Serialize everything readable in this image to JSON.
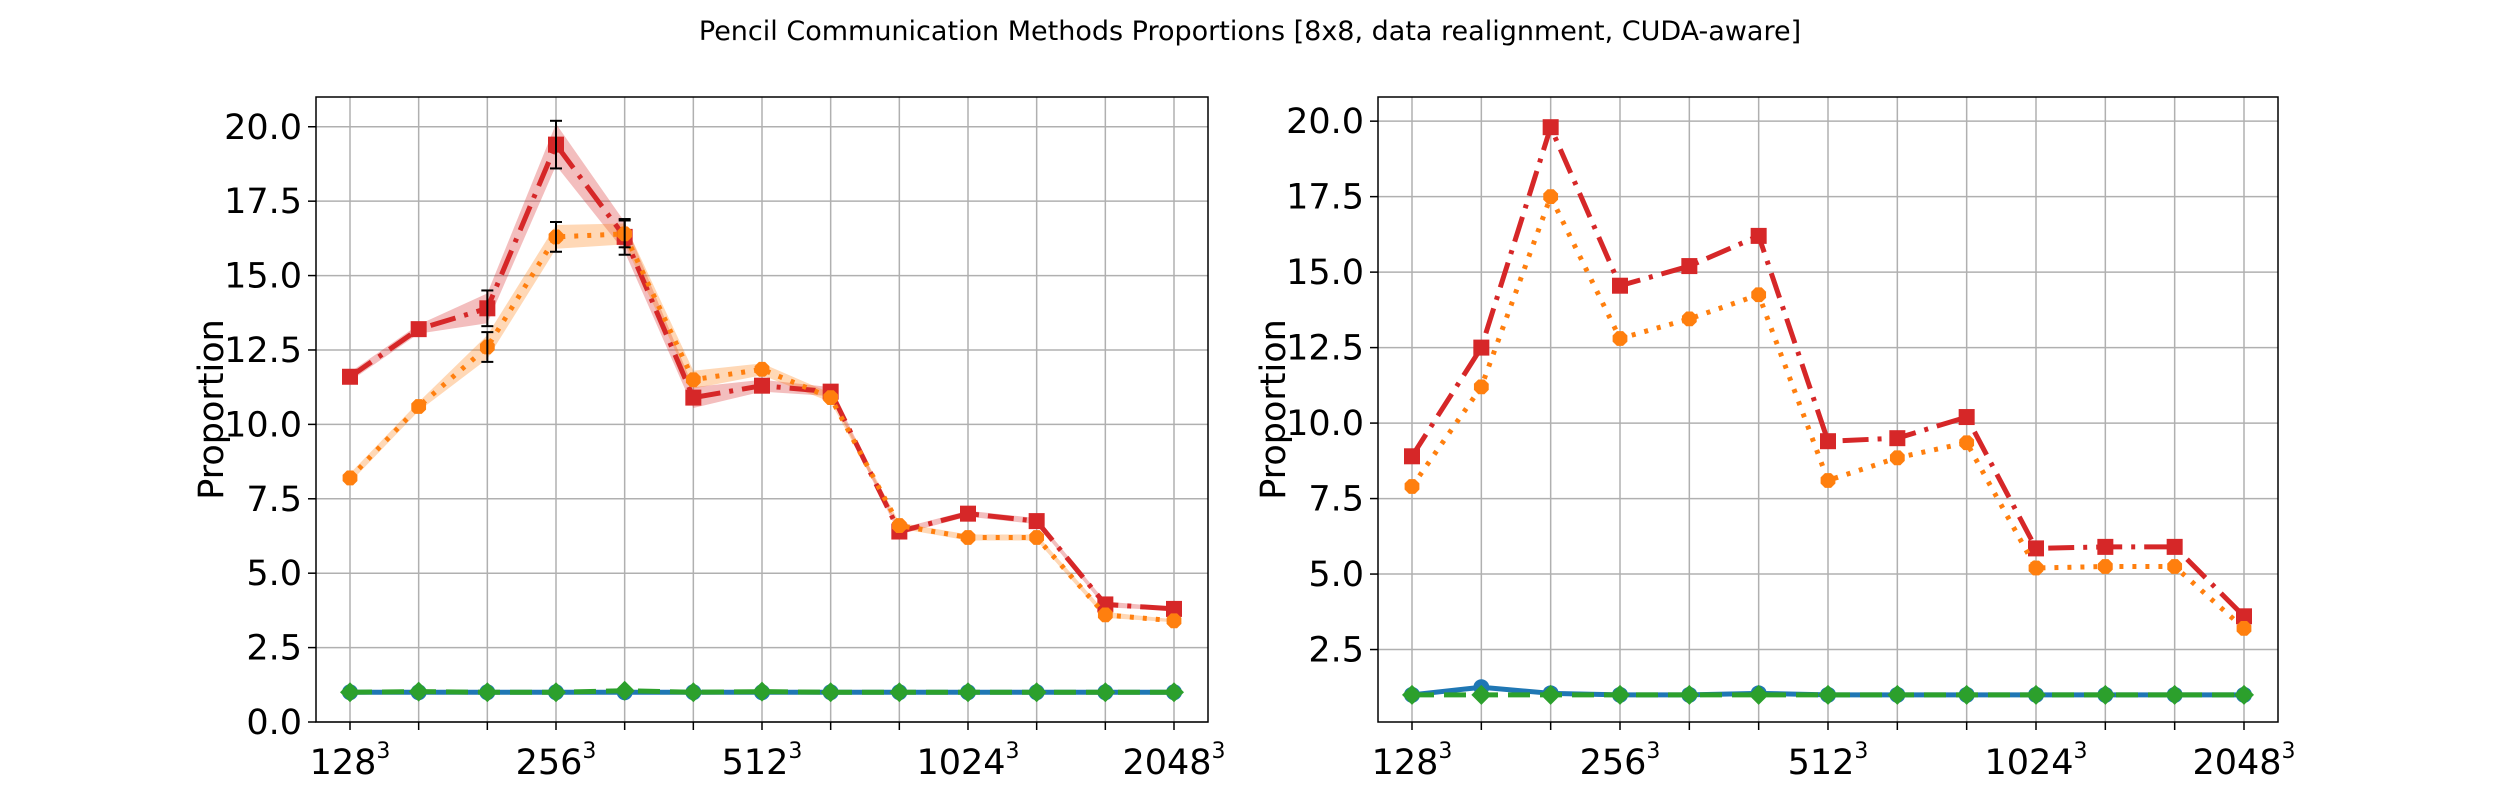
{
  "figure": {
    "title": "Pencil Communication Methods Proportions [8x8, data realignment, CUDA-aware]"
  },
  "colors": {
    "blue": "#1f77b4",
    "orange": "#ff7f0e",
    "green": "#2ca02c",
    "red": "#d62728",
    "grid": "#b0b0b0",
    "errorbar": "#000000"
  },
  "chart_data": [
    {
      "type": "line",
      "ylabel": "Proportion",
      "xlabel": "",
      "x_tick_labels": [
        {
          "base": "128",
          "exp": "3",
          "index": 0
        },
        {
          "base": "256",
          "exp": "3",
          "index": 3
        },
        {
          "base": "512",
          "exp": "3",
          "index": 6
        },
        {
          "base": "1024",
          "exp": "3",
          "index": 9
        },
        {
          "base": "2048",
          "exp": "3",
          "index": 12
        }
      ],
      "x_count": 13,
      "ylim": [
        0,
        21
      ],
      "yticks": [
        "0.0",
        "2.5",
        "5.0",
        "7.5",
        "10.0",
        "12.5",
        "15.0",
        "17.5",
        "20.0"
      ],
      "grid": true,
      "series": [
        {
          "color_key": "red",
          "style": "dashdot",
          "marker": "square",
          "values": [
            11.6,
            13.2,
            13.9,
            19.4,
            16.3,
            10.9,
            11.3,
            11.1,
            6.4,
            7.0,
            6.75,
            3.95,
            3.8
          ],
          "band": [
            0.15,
            0.15,
            0.5,
            0.7,
            0.5,
            0.35,
            0.2,
            0.15,
            0.1,
            0.1,
            0.1,
            0.1,
            0.05
          ],
          "errorbars": [
            2,
            3,
            4
          ]
        },
        {
          "color_key": "orange",
          "style": "dotted",
          "marker": "octagon",
          "values": [
            8.2,
            10.6,
            12.6,
            16.3,
            16.4,
            11.5,
            11.85,
            10.9,
            6.6,
            6.2,
            6.2,
            3.6,
            3.4
          ],
          "band": [
            0.15,
            0.15,
            0.4,
            0.4,
            0.35,
            0.3,
            0.2,
            0.15,
            0.1,
            0.1,
            0.1,
            0.1,
            0.05
          ],
          "errorbars": [
            2,
            3,
            4
          ]
        },
        {
          "color_key": "blue",
          "style": "solid",
          "marker": "circle",
          "values": [
            1.0,
            1.0,
            1.0,
            1.0,
            1.0,
            1.0,
            1.0,
            1.0,
            1.0,
            1.0,
            1.0,
            1.0,
            1.0
          ],
          "band": [],
          "errorbars": []
        },
        {
          "color_key": "green",
          "style": "dashed",
          "marker": "diamond",
          "values": [
            1.0,
            1.02,
            1.0,
            1.0,
            1.05,
            1.0,
            1.02,
            1.0,
            1.0,
            1.0,
            1.0,
            1.0,
            1.0
          ],
          "band": [],
          "errorbars": []
        }
      ]
    },
    {
      "type": "line",
      "ylabel": "Proportion",
      "xlabel": "",
      "x_tick_labels": [
        {
          "base": "128",
          "exp": "3",
          "index": 0
        },
        {
          "base": "256",
          "exp": "3",
          "index": 3
        },
        {
          "base": "512",
          "exp": "3",
          "index": 6
        },
        {
          "base": "1024",
          "exp": "3",
          "index": 9
        },
        {
          "base": "2048",
          "exp": "3",
          "index": 12
        }
      ],
      "x_count": 13,
      "ylim": [
        0.1,
        20.8
      ],
      "yticks": [
        "2.5",
        "5.0",
        "7.5",
        "10.0",
        "12.5",
        "15.0",
        "17.5",
        "20.0"
      ],
      "grid": true,
      "series": [
        {
          "color_key": "red",
          "style": "dashdot",
          "marker": "square",
          "values": [
            8.9,
            12.5,
            19.8,
            14.55,
            15.2,
            16.2,
            9.4,
            9.5,
            10.2,
            5.85,
            5.9,
            5.9,
            3.6
          ],
          "band": [],
          "errorbars": []
        },
        {
          "color_key": "orange",
          "style": "dotted",
          "marker": "octagon",
          "values": [
            7.9,
            11.2,
            17.5,
            12.8,
            13.45,
            14.25,
            8.1,
            8.85,
            9.35,
            5.2,
            5.25,
            5.25,
            3.2
          ],
          "band": [],
          "errorbars": []
        },
        {
          "color_key": "blue",
          "style": "solid",
          "marker": "circle",
          "values": [
            1.0,
            1.25,
            1.05,
            1.0,
            1.0,
            1.05,
            1.0,
            1.0,
            1.0,
            1.0,
            1.0,
            1.0,
            1.0
          ],
          "band": [],
          "errorbars": []
        },
        {
          "color_key": "green",
          "style": "dashed",
          "marker": "diamond",
          "values": [
            1.0,
            1.0,
            1.0,
            1.0,
            1.0,
            1.0,
            1.0,
            1.0,
            1.0,
            1.0,
            1.0,
            1.0,
            1.0
          ],
          "band": [],
          "errorbars": []
        }
      ]
    }
  ]
}
